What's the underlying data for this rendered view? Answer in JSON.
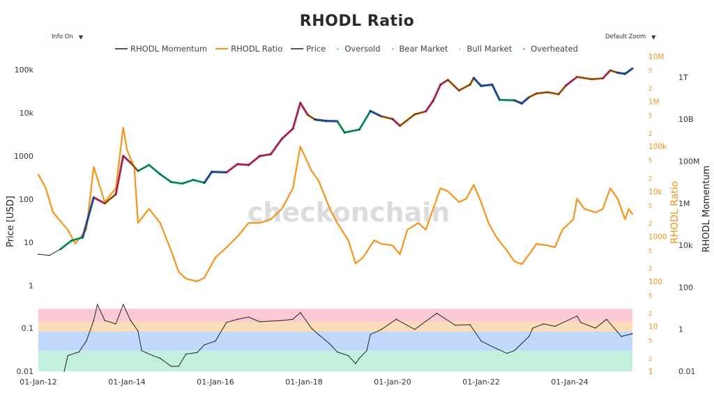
{
  "title": "RHODL Ratio",
  "controls": {
    "info_label": "Info On",
    "zoom_label": "Default Zoom",
    "arrow": "▼"
  },
  "legend": [
    {
      "label": "RHODL Momentum",
      "kind": "line",
      "color": "#555555"
    },
    {
      "label": "RHODL Ratio",
      "kind": "line",
      "color": "#f7931a"
    },
    {
      "label": "Price",
      "kind": "line",
      "color": "#555555"
    },
    {
      "label": "Oversold",
      "kind": "dot",
      "color": "#7ee0b8"
    },
    {
      "label": "Bear Market",
      "kind": "dot",
      "color": "#9cc3f5"
    },
    {
      "label": "Bull Market",
      "kind": "dot",
      "color": "#f8d3a3"
    },
    {
      "label": "Overheated",
      "kind": "dot",
      "color": "#f28aa6"
    }
  ],
  "watermark": "checkonchain",
  "chart_data": {
    "type": "line",
    "title": "RHODL Ratio",
    "x_ticks": [
      "01-Jan-12",
      "01-Jan-14",
      "01-Jan-16",
      "01-Jan-18",
      "01-Jan-20",
      "01-Jan-22",
      "01-Jan-24"
    ],
    "x_tick_dates": [
      "2012-01",
      "2014-01",
      "2016-01",
      "2018-01",
      "2020-01",
      "2022-01",
      "2024-01"
    ],
    "x_range": [
      "2012-01",
      "2025-06"
    ],
    "price_axis": {
      "label": "Price [USD]",
      "scale": "log",
      "ticks": [
        [
          1,
          "1"
        ],
        [
          10,
          "10"
        ],
        [
          100,
          "100"
        ],
        [
          1000,
          "1000"
        ],
        [
          10000,
          "10k"
        ],
        [
          100000,
          "100k"
        ]
      ]
    },
    "ratio_axis": {
      "label": "RHODL Ratio",
      "scale": "log",
      "color": "#f7931a",
      "ticks": [
        [
          1,
          "1"
        ],
        [
          2,
          "2"
        ],
        [
          5,
          "5"
        ],
        [
          10,
          "10"
        ],
        [
          20,
          "2"
        ],
        [
          50,
          "5"
        ],
        [
          100,
          "100"
        ],
        [
          200,
          "2"
        ],
        [
          500,
          "5"
        ],
        [
          1000,
          "1000"
        ],
        [
          2000,
          "2"
        ],
        [
          5000,
          "5"
        ],
        [
          10000,
          "10k"
        ],
        [
          20000,
          "2"
        ],
        [
          50000,
          "5"
        ],
        [
          100000,
          "100k"
        ],
        [
          200000,
          "2"
        ],
        [
          500000,
          "5"
        ],
        [
          1000000,
          "1M"
        ],
        [
          2000000,
          "2"
        ],
        [
          5000000,
          "5"
        ],
        [
          10000000,
          "10M"
        ]
      ]
    },
    "momentum_axis": {
      "label": "RHODL Momentum",
      "scale": "log",
      "ticks": [
        [
          0.01,
          "0.01"
        ],
        [
          1,
          "1"
        ],
        [
          100,
          "100"
        ],
        [
          10000,
          "10k"
        ],
        [
          1000000,
          "1M"
        ],
        [
          100000000,
          "100M"
        ],
        [
          10000000000,
          "10B"
        ],
        [
          1000000000000,
          "1T"
        ]
      ]
    },
    "lower_axis": {
      "scale": "log",
      "ticks": [
        [
          0.01,
          "0.01"
        ],
        [
          0.1,
          "0.1"
        ]
      ]
    },
    "zones": [
      {
        "name": "Oversold",
        "from": 0.01,
        "to": 0.03,
        "band_color": "#c3f0dc",
        "line_color": "#1fc77e"
      },
      {
        "name": "Bear Market",
        "from": 0.03,
        "to": 0.083,
        "band_color": "#bfd8fb",
        "line_color": "#1f5fc4"
      },
      {
        "name": "Bull Market",
        "from": 0.083,
        "to": 0.14,
        "band_color": "#fbdcb9",
        "line_color": "#d9821c"
      },
      {
        "name": "Overheated",
        "from": 0.14,
        "to": 0.28,
        "band_color": "#fbc9d5",
        "line_color": "#ea3a6e"
      }
    ],
    "series": [
      {
        "name": "Price",
        "color": "#222222",
        "data": [
          [
            "2012-01",
            5.3
          ],
          [
            "2012-04",
            5
          ],
          [
            "2012-07",
            7
          ],
          [
            "2012-10",
            11
          ],
          [
            "2013-01",
            13
          ],
          [
            "2013-04",
            110
          ],
          [
            "2013-07",
            80
          ],
          [
            "2013-10",
            130
          ],
          [
            "2013-12",
            1000
          ],
          [
            "2014-02",
            700
          ],
          [
            "2014-04",
            450
          ],
          [
            "2014-07",
            620
          ],
          [
            "2014-10",
            380
          ],
          [
            "2015-01",
            250
          ],
          [
            "2015-04",
            230
          ],
          [
            "2015-07",
            280
          ],
          [
            "2015-10",
            240
          ],
          [
            "2015-12",
            430
          ],
          [
            "2016-04",
            420
          ],
          [
            "2016-07",
            650
          ],
          [
            "2016-10",
            620
          ],
          [
            "2017-01",
            1000
          ],
          [
            "2017-04",
            1100
          ],
          [
            "2017-07",
            2500
          ],
          [
            "2017-10",
            4300
          ],
          [
            "2017-12",
            17000
          ],
          [
            "2018-02",
            9000
          ],
          [
            "2018-04",
            7000
          ],
          [
            "2018-07",
            6500
          ],
          [
            "2018-10",
            6400
          ],
          [
            "2018-12",
            3500
          ],
          [
            "2019-04",
            4100
          ],
          [
            "2019-07",
            11000
          ],
          [
            "2019-10",
            8300
          ],
          [
            "2020-01",
            7200
          ],
          [
            "2020-03",
            5000
          ],
          [
            "2020-07",
            9200
          ],
          [
            "2020-10",
            10800
          ],
          [
            "2020-12",
            19000
          ],
          [
            "2021-02",
            45000
          ],
          [
            "2021-04",
            58000
          ],
          [
            "2021-07",
            33000
          ],
          [
            "2021-10",
            45000
          ],
          [
            "2021-11",
            64000
          ],
          [
            "2022-01",
            42000
          ],
          [
            "2022-04",
            45000
          ],
          [
            "2022-06",
            20000
          ],
          [
            "2022-10",
            19500
          ],
          [
            "2022-12",
            16500
          ],
          [
            "2023-02",
            23000
          ],
          [
            "2023-04",
            28000
          ],
          [
            "2023-07",
            30000
          ],
          [
            "2023-10",
            27000
          ],
          [
            "2023-12",
            43000
          ],
          [
            "2024-03",
            68000
          ],
          [
            "2024-07",
            60000
          ],
          [
            "2024-10",
            63000
          ],
          [
            "2024-12",
            96000
          ],
          [
            "2025-02",
            85000
          ],
          [
            "2025-04",
            80000
          ],
          [
            "2025-06",
            106000
          ]
        ]
      },
      {
        "name": "RHODL Ratio",
        "color": "#f7931a",
        "data": [
          [
            "2012-01",
            24000
          ],
          [
            "2012-03",
            11800
          ],
          [
            "2012-05",
            3400
          ],
          [
            "2012-09",
            1400
          ],
          [
            "2012-11",
            690
          ],
          [
            "2013-02",
            1400
          ],
          [
            "2013-04",
            35000
          ],
          [
            "2013-07",
            5800
          ],
          [
            "2013-10",
            11800
          ],
          [
            "2013-12",
            263000
          ],
          [
            "2014-01",
            85000
          ],
          [
            "2014-03",
            35000
          ],
          [
            "2014-04",
            2000
          ],
          [
            "2014-07",
            4100
          ],
          [
            "2014-10",
            2000
          ],
          [
            "2015-01",
            480
          ],
          [
            "2015-03",
            165
          ],
          [
            "2015-05",
            115
          ],
          [
            "2015-08",
            100
          ],
          [
            "2015-10",
            120
          ],
          [
            "2016-01",
            340
          ],
          [
            "2016-04",
            570
          ],
          [
            "2016-07",
            1000
          ],
          [
            "2016-10",
            2000
          ],
          [
            "2017-01",
            2000
          ],
          [
            "2017-04",
            2400
          ],
          [
            "2017-07",
            4100
          ],
          [
            "2017-10",
            11800
          ],
          [
            "2017-12",
            100000
          ],
          [
            "2018-03",
            29000
          ],
          [
            "2018-05",
            17000
          ],
          [
            "2018-08",
            4100
          ],
          [
            "2018-10",
            2000
          ],
          [
            "2019-01",
            820
          ],
          [
            "2019-03",
            250
          ],
          [
            "2019-05",
            340
          ],
          [
            "2019-08",
            820
          ],
          [
            "2019-10",
            680
          ],
          [
            "2020-01",
            630
          ],
          [
            "2020-03",
            400
          ],
          [
            "2020-05",
            1400
          ],
          [
            "2020-08",
            2000
          ],
          [
            "2020-10",
            1400
          ],
          [
            "2020-12",
            4100
          ],
          [
            "2021-02",
            11800
          ],
          [
            "2021-04",
            10000
          ],
          [
            "2021-07",
            5800
          ],
          [
            "2021-09",
            6900
          ],
          [
            "2021-11",
            14000
          ],
          [
            "2022-01",
            5800
          ],
          [
            "2022-03",
            2000
          ],
          [
            "2022-05",
            1000
          ],
          [
            "2022-08",
            480
          ],
          [
            "2022-10",
            280
          ],
          [
            "2022-12",
            240
          ],
          [
            "2023-02",
            400
          ],
          [
            "2023-04",
            680
          ],
          [
            "2023-07",
            630
          ],
          [
            "2023-09",
            570
          ],
          [
            "2023-11",
            1400
          ],
          [
            "2024-02",
            2400
          ],
          [
            "2024-03",
            6900
          ],
          [
            "2024-05",
            4100
          ],
          [
            "2024-08",
            3400
          ],
          [
            "2024-10",
            4100
          ],
          [
            "2024-12",
            11800
          ],
          [
            "2025-02",
            6900
          ],
          [
            "2025-04",
            2400
          ],
          [
            "2025-05",
            4100
          ],
          [
            "2025-06",
            3100
          ]
        ]
      },
      {
        "name": "RHODL Momentum",
        "color": "#222222",
        "data": [
          [
            "2012-08",
            0.01
          ],
          [
            "2012-09",
            0.023
          ],
          [
            "2012-12",
            0.028
          ],
          [
            "2013-02",
            0.05
          ],
          [
            "2013-04",
            0.15
          ],
          [
            "2013-05",
            0.35
          ],
          [
            "2013-07",
            0.15
          ],
          [
            "2013-10",
            0.125
          ],
          [
            "2013-12",
            0.35
          ],
          [
            "2014-02",
            0.15
          ],
          [
            "2014-04",
            0.086
          ],
          [
            "2014-05",
            0.03
          ],
          [
            "2014-08",
            0.023
          ],
          [
            "2014-10",
            0.02
          ],
          [
            "2015-01",
            0.013
          ],
          [
            "2015-03",
            0.013
          ],
          [
            "2015-05",
            0.025
          ],
          [
            "2015-08",
            0.027
          ],
          [
            "2015-10",
            0.041
          ],
          [
            "2016-01",
            0.05
          ],
          [
            "2016-04",
            0.135
          ],
          [
            "2016-07",
            0.16
          ],
          [
            "2016-10",
            0.18
          ],
          [
            "2017-01",
            0.14
          ],
          [
            "2017-04",
            0.145
          ],
          [
            "2017-07",
            0.15
          ],
          [
            "2017-10",
            0.16
          ],
          [
            "2017-12",
            0.23
          ],
          [
            "2018-03",
            0.1
          ],
          [
            "2018-05",
            0.07
          ],
          [
            "2018-08",
            0.043
          ],
          [
            "2018-10",
            0.028
          ],
          [
            "2019-01",
            0.023
          ],
          [
            "2019-03",
            0.015
          ],
          [
            "2019-04",
            0.02
          ],
          [
            "2019-06",
            0.03
          ],
          [
            "2019-07",
            0.071
          ],
          [
            "2019-10",
            0.093
          ],
          [
            "2020-02",
            0.16
          ],
          [
            "2020-07",
            0.093
          ],
          [
            "2021-01",
            0.22
          ],
          [
            "2021-06",
            0.116
          ],
          [
            "2021-10",
            0.12
          ],
          [
            "2022-01",
            0.05
          ],
          [
            "2022-05",
            0.034
          ],
          [
            "2022-08",
            0.026
          ],
          [
            "2022-10",
            0.03
          ],
          [
            "2023-02",
            0.064
          ],
          [
            "2023-03",
            0.1
          ],
          [
            "2023-06",
            0.125
          ],
          [
            "2023-09",
            0.11
          ],
          [
            "2024-03",
            0.19
          ],
          [
            "2024-04",
            0.135
          ],
          [
            "2024-08",
            0.1
          ],
          [
            "2024-11",
            0.16
          ],
          [
            "2025-03",
            0.064
          ],
          [
            "2025-06",
            0.074
          ]
        ]
      }
    ],
    "grid": false,
    "legend_position": "top"
  }
}
